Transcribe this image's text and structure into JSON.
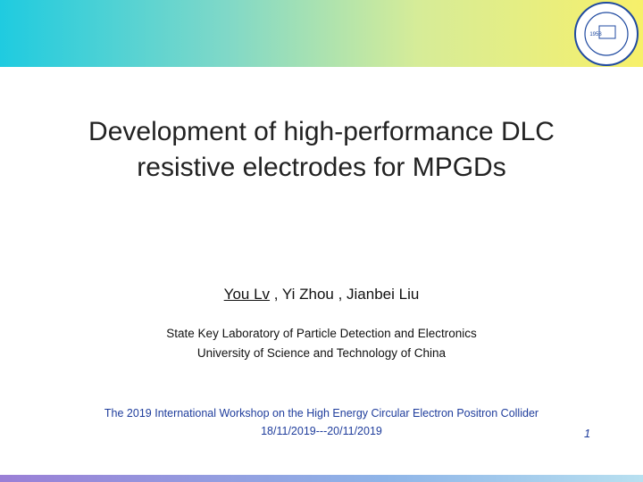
{
  "title": [
    "Development of high-performance DLC",
    "resistive electrodes for MPGDs"
  ],
  "authors": {
    "presenter": "You Lv",
    "others": " , Yi Zhou , Jianbei Liu"
  },
  "affiliations": [
    "State Key Laboratory of Particle Detection and Electronics",
    "University of Science and Technology of China"
  ],
  "conference": [
    "The 2019 International Workshop on the High Energy Circular Electron Positron Collider",
    "18/11/2019---20/11/2019"
  ],
  "logo": {
    "year": "1958"
  },
  "page_number": "1"
}
